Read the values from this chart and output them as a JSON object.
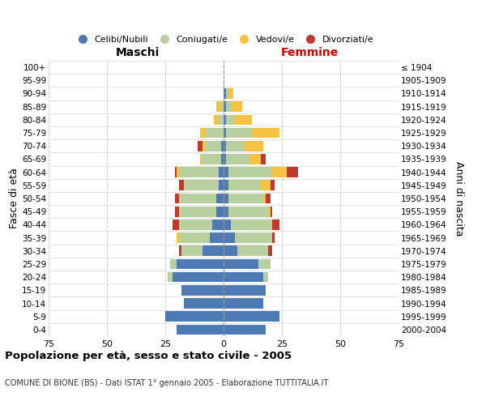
{
  "age_groups": [
    "100+",
    "95-99",
    "90-94",
    "85-89",
    "80-84",
    "75-79",
    "70-74",
    "65-69",
    "60-64",
    "55-59",
    "50-54",
    "45-49",
    "40-44",
    "35-39",
    "30-34",
    "25-29",
    "20-24",
    "15-19",
    "10-14",
    "5-9",
    "0-4"
  ],
  "birth_years": [
    "≤ 1904",
    "1905-1909",
    "1910-1914",
    "1915-1919",
    "1920-1924",
    "1925-1929",
    "1930-1934",
    "1935-1939",
    "1940-1944",
    "1945-1949",
    "1950-1954",
    "1955-1959",
    "1960-1964",
    "1965-1969",
    "1970-1974",
    "1975-1979",
    "1980-1984",
    "1985-1989",
    "1990-1994",
    "1995-1999",
    "2000-2004"
  ],
  "colors": {
    "celibi": "#4d7ab5",
    "coniugati": "#b8cfa0",
    "vedovi": "#f5c242",
    "divorziati": "#c0392b"
  },
  "males": {
    "celibi": [
      0,
      0,
      0,
      0,
      0,
      0,
      1,
      1,
      2,
      2,
      3,
      3,
      5,
      6,
      9,
      20,
      22,
      18,
      17,
      25,
      20
    ],
    "coniugati": [
      0,
      0,
      0,
      1,
      2,
      8,
      7,
      8,
      17,
      15,
      16,
      16,
      14,
      13,
      9,
      3,
      2,
      0,
      0,
      0,
      0
    ],
    "vedovi": [
      0,
      0,
      0,
      2,
      2,
      2,
      1,
      1,
      1,
      0,
      0,
      0,
      0,
      1,
      0,
      0,
      0,
      0,
      0,
      0,
      0
    ],
    "divorziati": [
      0,
      0,
      0,
      0,
      0,
      0,
      2,
      0,
      1,
      2,
      2,
      2,
      3,
      0,
      1,
      0,
      0,
      0,
      0,
      0,
      0
    ]
  },
  "females": {
    "nubili": [
      0,
      0,
      1,
      1,
      1,
      1,
      1,
      1,
      2,
      2,
      2,
      2,
      3,
      5,
      6,
      15,
      17,
      18,
      17,
      24,
      18
    ],
    "coniugate": [
      0,
      0,
      1,
      2,
      4,
      11,
      8,
      10,
      19,
      14,
      15,
      17,
      18,
      16,
      13,
      5,
      2,
      0,
      0,
      0,
      0
    ],
    "vedove": [
      0,
      0,
      2,
      5,
      7,
      12,
      8,
      5,
      6,
      4,
      1,
      1,
      0,
      0,
      0,
      0,
      0,
      0,
      0,
      0,
      0
    ],
    "divorziate": [
      0,
      0,
      0,
      0,
      0,
      0,
      0,
      2,
      5,
      2,
      2,
      1,
      3,
      1,
      2,
      0,
      0,
      0,
      0,
      0,
      0
    ]
  },
  "xlim": 75,
  "title_main": "Popolazione per età, sesso e stato civile - 2005",
  "title_sub": "COMUNE DI BIONE (BS) - Dati ISTAT 1° gennaio 2005 - Elaborazione TUTTITALIA.IT",
  "ylabel_left": "Fasce di età",
  "ylabel_right": "Anni di nascita",
  "xlabel_left": "Maschi",
  "xlabel_right": "Femmine",
  "legend_labels": [
    "Celibi/Nubili",
    "Coniugati/e",
    "Vedovi/e",
    "Divorziati/e"
  ],
  "background_color": "#ffffff",
  "grid_color": "#cccccc"
}
